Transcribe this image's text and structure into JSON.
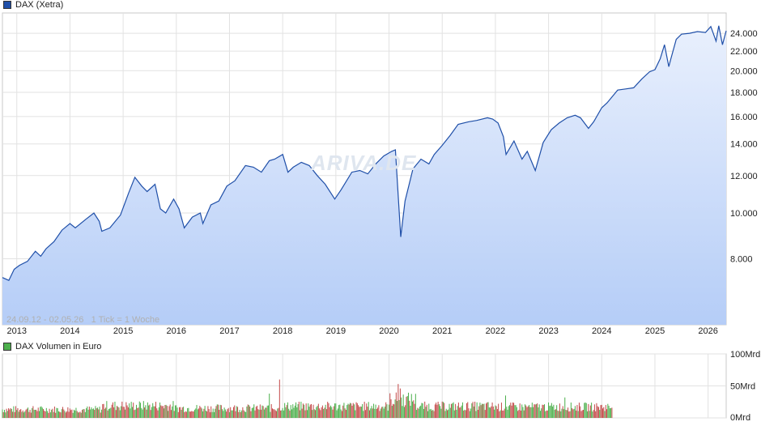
{
  "colors": {
    "line": "#1f4fa8",
    "volume_up": "#4db04d",
    "volume_down": "#c44a4a",
    "area_top": "#e9f0fd",
    "area_bottom": "#b5cdf7"
  },
  "watermark": "ARIVA.DE",
  "chart_data": [
    {
      "type": "area",
      "legend": "DAX (Xetra)",
      "date_range_caption": "24.09.12 - 02.05.26",
      "tick_caption": "1 Tick = 1 Woche",
      "y_scale": "log",
      "ylim": [
        5800,
        26500
      ],
      "xlim": [
        2012.73,
        2026.34
      ],
      "grid": true,
      "y_ticks": [
        8000,
        10000,
        12000,
        14000,
        16000,
        18000,
        20000,
        22000,
        24000
      ],
      "y_tick_labels": [
        "8.000",
        "10.000",
        "12.000",
        "14.000",
        "16.000",
        "18.000",
        "20.000",
        "22.000",
        "24.000"
      ],
      "x_ticks": [
        2013,
        2014,
        2015,
        2016,
        2017,
        2018,
        2019,
        2020,
        2021,
        2022,
        2023,
        2024,
        2025,
        2026
      ],
      "x_tick_labels": [
        "2013",
        "2014",
        "2015",
        "2016",
        "2017",
        "2018",
        "2019",
        "2020",
        "2021",
        "2022",
        "2023",
        "2024",
        "2025",
        "2026"
      ],
      "series": [
        {
          "name": "DAX (Xetra)",
          "x": [
            2012.73,
            2012.85,
            2012.95,
            2013.05,
            2013.2,
            2013.35,
            2013.45,
            2013.55,
            2013.7,
            2013.85,
            2014.0,
            2014.1,
            2014.3,
            2014.45,
            2014.55,
            2014.6,
            2014.75,
            2014.95,
            2015.1,
            2015.22,
            2015.35,
            2015.45,
            2015.6,
            2015.7,
            2015.8,
            2015.95,
            2016.05,
            2016.15,
            2016.3,
            2016.45,
            2016.5,
            2016.65,
            2016.8,
            2016.95,
            2017.1,
            2017.3,
            2017.45,
            2017.6,
            2017.75,
            2017.85,
            2018.0,
            2018.1,
            2018.2,
            2018.35,
            2018.5,
            2018.65,
            2018.8,
            2018.98,
            2019.1,
            2019.3,
            2019.45,
            2019.6,
            2019.75,
            2019.9,
            2020.05,
            2020.12,
            2020.17,
            2020.22,
            2020.3,
            2020.45,
            2020.6,
            2020.75,
            2020.85,
            2021.0,
            2021.15,
            2021.3,
            2021.5,
            2021.65,
            2021.85,
            2021.95,
            2022.05,
            2022.15,
            2022.2,
            2022.35,
            2022.5,
            2022.6,
            2022.75,
            2022.9,
            2023.05,
            2023.2,
            2023.35,
            2023.5,
            2023.6,
            2023.75,
            2023.85,
            2024.0,
            2024.1,
            2024.3,
            2024.45,
            2024.6,
            2024.75,
            2024.9,
            2025.0,
            2025.1,
            2025.18,
            2025.26,
            2025.3,
            2025.4,
            2025.5,
            2025.65,
            2025.8,
            2025.95,
            2026.05,
            2026.15,
            2026.2,
            2026.27,
            2026.34
          ],
          "values": [
            7300,
            7200,
            7600,
            7750,
            7900,
            8300,
            8100,
            8400,
            8700,
            9200,
            9500,
            9300,
            9700,
            10000,
            9600,
            9150,
            9300,
            9900,
            11000,
            11900,
            11400,
            11100,
            11500,
            10200,
            10000,
            10700,
            10200,
            9300,
            9800,
            10000,
            9500,
            10400,
            10600,
            11400,
            11700,
            12600,
            12500,
            12200,
            12900,
            13000,
            13300,
            12200,
            12500,
            12800,
            12600,
            12000,
            11500,
            10700,
            11200,
            12200,
            12300,
            12100,
            12700,
            13200,
            13500,
            13600,
            11000,
            8900,
            10600,
            12400,
            13000,
            12700,
            13300,
            13900,
            14600,
            15400,
            15600,
            15700,
            15900,
            15800,
            15500,
            14500,
            13300,
            14200,
            13000,
            13500,
            12300,
            14100,
            15000,
            15500,
            15900,
            16100,
            15900,
            15100,
            15600,
            16700,
            17100,
            18200,
            18300,
            18400,
            19200,
            19900,
            20100,
            21200,
            22700,
            20400,
            21200,
            23300,
            23900,
            24000,
            24200,
            24100,
            24800,
            23100,
            24900,
            22700,
            24300
          ]
        }
      ]
    },
    {
      "type": "bar",
      "legend": "DAX Volumen in Euro",
      "ylim": [
        0,
        100
      ],
      "y_unit": "Mrd",
      "y_ticks": [
        0,
        50,
        100
      ],
      "y_tick_labels": [
        "0Mrd",
        "50Mrd",
        "100Mrd"
      ],
      "x_span": [
        2012.73,
        2024.2
      ],
      "volume_segments": [
        {
          "x": [
            2012.73,
            2014.6
          ],
          "typical": 14
        },
        {
          "x": [
            2014.6,
            2015.95
          ],
          "typical": 20
        },
        {
          "x": [
            2015.95,
            2017.9
          ],
          "typical": 16
        },
        {
          "x": [
            2017.9,
            2020.0
          ],
          "typical": 19
        },
        {
          "x": [
            2020.0,
            2020.5
          ],
          "typical": 30
        },
        {
          "x": [
            2020.5,
            2022.0
          ],
          "typical": 19
        },
        {
          "x": [
            2022.0,
            2024.2
          ],
          "typical": 18
        }
      ],
      "volume_spikes": [
        {
          "x": 2017.95,
          "value": 60
        },
        {
          "x": 2017.75,
          "value": 38
        },
        {
          "x": 2020.18,
          "value": 53
        },
        {
          "x": 2020.22,
          "value": 46
        },
        {
          "x": 2022.2,
          "value": 35
        },
        {
          "x": 2023.3,
          "value": 32
        }
      ]
    }
  ]
}
